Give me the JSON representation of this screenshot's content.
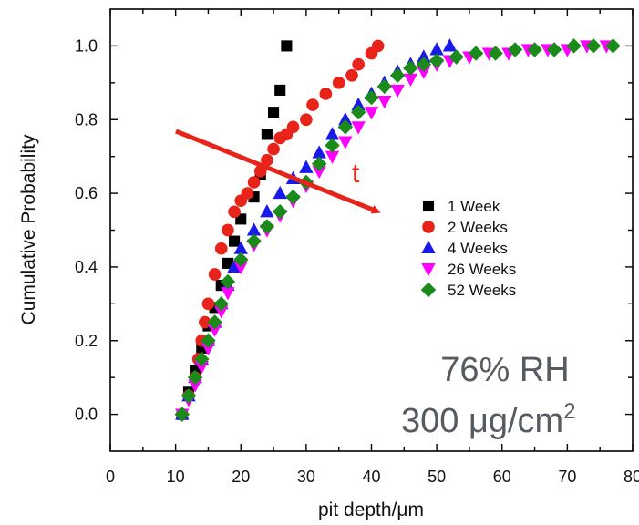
{
  "chart_data": {
    "type": "scatter",
    "xlabel": "pit depth/μm",
    "ylabel": "Cumulative Probability",
    "xlim": [
      0,
      80
    ],
    "ylim": [
      -0.1,
      1.1
    ],
    "xticks": [
      "0",
      "10",
      "20",
      "30",
      "40",
      "50",
      "60",
      "70",
      "80"
    ],
    "yticks": [
      "0.0",
      "0.2",
      "0.4",
      "0.6",
      "0.8",
      "1.0"
    ],
    "legend_position": "center-right",
    "grid": false,
    "annotations": {
      "arrow_label": "t",
      "humidity": "76% RH",
      "loading_value": "300 μg/cm",
      "loading_exponent": "2"
    },
    "series": [
      {
        "name": "1 Week",
        "marker": "square",
        "color": "#000000",
        "x": [
          11,
          12,
          13,
          14,
          15,
          16,
          17,
          18,
          19,
          20,
          22,
          23,
          24,
          25,
          26,
          27
        ],
        "y": [
          0.0,
          0.06,
          0.12,
          0.18,
          0.24,
          0.29,
          0.35,
          0.41,
          0.47,
          0.53,
          0.59,
          0.65,
          0.76,
          0.82,
          0.88,
          1.0
        ]
      },
      {
        "name": "2 Weeks",
        "marker": "circle",
        "color": "#e8231a",
        "x": [
          11,
          12,
          13,
          13.5,
          14,
          14.5,
          15,
          16,
          17,
          18,
          19,
          20,
          21,
          22,
          23,
          24,
          25,
          26,
          27,
          28,
          30,
          31,
          33,
          35,
          37,
          38,
          40,
          41
        ],
        "y": [
          0.0,
          0.05,
          0.1,
          0.15,
          0.2,
          0.25,
          0.3,
          0.38,
          0.45,
          0.5,
          0.55,
          0.58,
          0.6,
          0.63,
          0.66,
          0.69,
          0.72,
          0.75,
          0.76,
          0.78,
          0.8,
          0.84,
          0.87,
          0.9,
          0.92,
          0.95,
          0.98,
          1.0
        ]
      },
      {
        "name": "4 Weeks",
        "marker": "triangle-up",
        "color": "#1a1ae8",
        "x": [
          11,
          12,
          13,
          14,
          15,
          16,
          17,
          18,
          19,
          20,
          22,
          24,
          26,
          28,
          30,
          32,
          34,
          36,
          38,
          40,
          42,
          44,
          46,
          48,
          50,
          52
        ],
        "y": [
          0.0,
          0.05,
          0.1,
          0.15,
          0.2,
          0.25,
          0.3,
          0.35,
          0.4,
          0.45,
          0.5,
          0.55,
          0.6,
          0.64,
          0.67,
          0.71,
          0.76,
          0.8,
          0.84,
          0.87,
          0.9,
          0.93,
          0.95,
          0.97,
          0.99,
          1.0
        ]
      },
      {
        "name": "26 Weeks",
        "marker": "triangle-down",
        "color": "#ff00ff",
        "x": [
          11,
          12,
          13,
          14,
          15,
          16,
          17,
          18,
          20,
          22,
          24,
          26,
          28,
          30,
          32,
          34,
          36,
          38,
          40,
          42,
          44,
          46,
          48,
          50,
          52,
          55,
          58,
          61,
          64,
          67,
          70,
          73,
          76
        ],
        "y": [
          0.0,
          0.04,
          0.08,
          0.13,
          0.18,
          0.23,
          0.28,
          0.33,
          0.4,
          0.46,
          0.5,
          0.54,
          0.58,
          0.62,
          0.66,
          0.7,
          0.74,
          0.78,
          0.82,
          0.85,
          0.88,
          0.91,
          0.93,
          0.95,
          0.96,
          0.97,
          0.98,
          0.98,
          0.99,
          0.99,
          0.99,
          1.0,
          1.0
        ]
      },
      {
        "name": "52 Weeks",
        "marker": "diamond",
        "color": "#1a8a1a",
        "x": [
          11,
          12,
          13,
          14,
          15,
          16,
          17,
          18,
          20,
          22,
          24,
          26,
          28,
          30,
          32,
          34,
          36,
          38,
          40,
          42,
          44,
          46,
          48,
          50,
          53,
          56,
          59,
          62,
          65,
          68,
          71,
          74,
          77
        ],
        "y": [
          0.0,
          0.05,
          0.1,
          0.15,
          0.2,
          0.25,
          0.3,
          0.36,
          0.42,
          0.47,
          0.51,
          0.55,
          0.59,
          0.63,
          0.68,
          0.73,
          0.78,
          0.82,
          0.86,
          0.89,
          0.92,
          0.94,
          0.95,
          0.96,
          0.97,
          0.98,
          0.98,
          0.99,
          0.99,
          0.99,
          1.0,
          1.0,
          1.0
        ]
      }
    ]
  }
}
